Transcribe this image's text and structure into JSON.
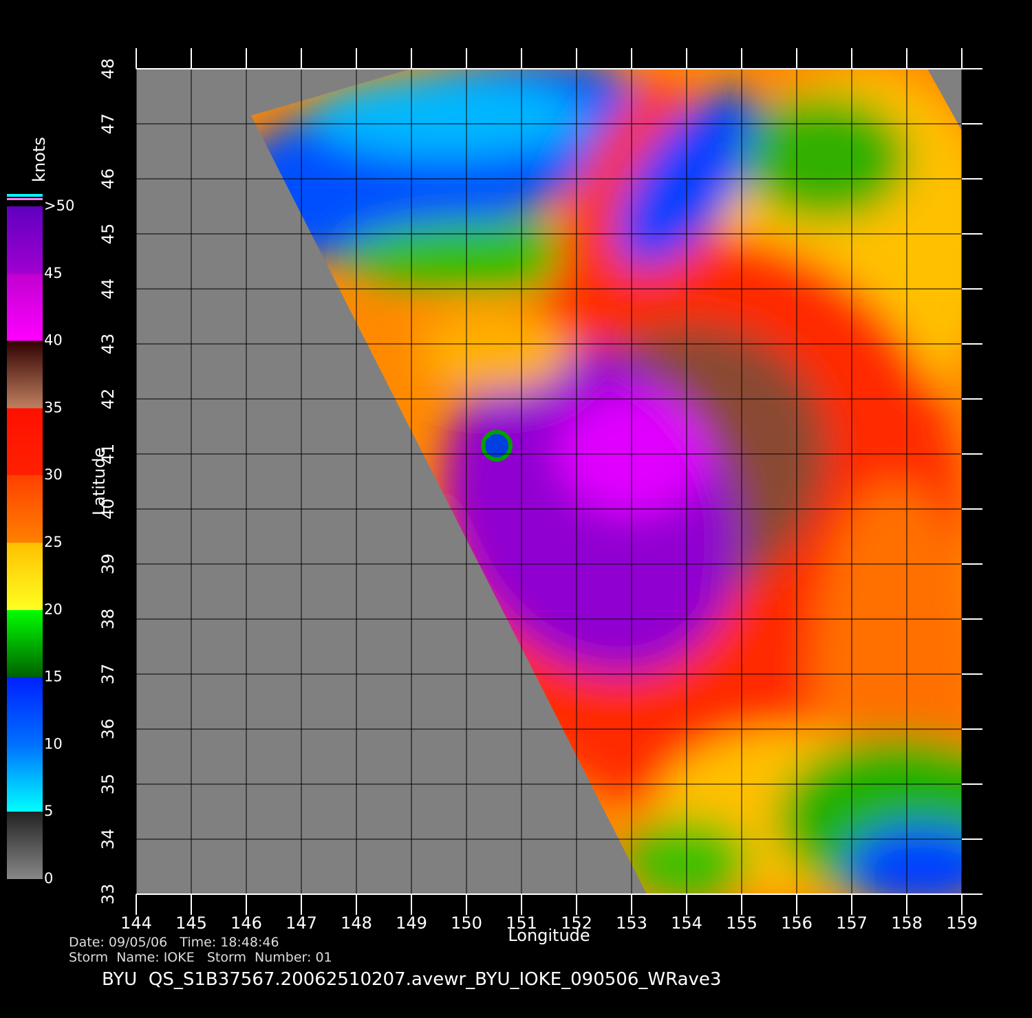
{
  "map": {
    "xlim": [
      144,
      159
    ],
    "ylim": [
      33,
      48
    ],
    "xticks": [
      144,
      145,
      146,
      147,
      148,
      149,
      150,
      151,
      152,
      153,
      154,
      155,
      156,
      157,
      158,
      159
    ],
    "yticks": [
      33,
      34,
      35,
      36,
      37,
      38,
      39,
      40,
      41,
      42,
      43,
      44,
      45,
      46,
      47,
      48
    ],
    "xlabel": "Longitude",
    "ylabel": "Latitude",
    "colorbar": {
      "label": "knots",
      "lim": [
        0,
        50
      ],
      "ticks": [
        0,
        5,
        10,
        15,
        20,
        25,
        30,
        35,
        40,
        45,
        {
          "value": 50,
          "label": ">50"
        }
      ]
    },
    "info": {
      "date_time": "Date: 09/05/06   Time: 18:48:46",
      "storm": "Storm  Name: IOKE   Storm  Number: 01"
    },
    "title": "BYU  QS_S1B37567.20062510207.avewr_BYU_IOKE_090506_WRave3"
  }
}
